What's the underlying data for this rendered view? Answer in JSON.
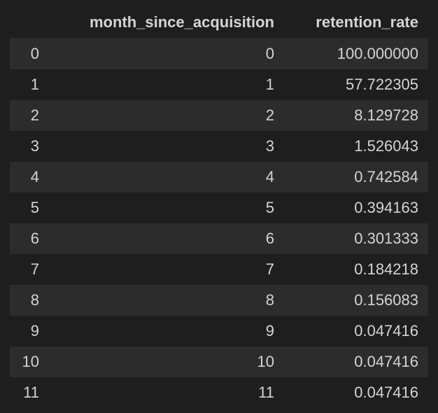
{
  "table": {
    "columns": [
      {
        "label": ""
      },
      {
        "label": "month_since_acquisition"
      },
      {
        "label": "retention_rate"
      }
    ],
    "rows": [
      {
        "index": "0",
        "month_since_acquisition": "0",
        "retention_rate": "100.000000"
      },
      {
        "index": "1",
        "month_since_acquisition": "1",
        "retention_rate": "57.722305"
      },
      {
        "index": "2",
        "month_since_acquisition": "2",
        "retention_rate": "8.129728"
      },
      {
        "index": "3",
        "month_since_acquisition": "3",
        "retention_rate": "1.526043"
      },
      {
        "index": "4",
        "month_since_acquisition": "4",
        "retention_rate": "0.742584"
      },
      {
        "index": "5",
        "month_since_acquisition": "5",
        "retention_rate": "0.394163"
      },
      {
        "index": "6",
        "month_since_acquisition": "6",
        "retention_rate": "0.301333"
      },
      {
        "index": "7",
        "month_since_acquisition": "7",
        "retention_rate": "0.184218"
      },
      {
        "index": "8",
        "month_since_acquisition": "8",
        "retention_rate": "0.156083"
      },
      {
        "index": "9",
        "month_since_acquisition": "9",
        "retention_rate": "0.047416"
      },
      {
        "index": "10",
        "month_since_acquisition": "10",
        "retention_rate": "0.047416"
      },
      {
        "index": "11",
        "month_since_acquisition": "11",
        "retention_rate": "0.047416"
      }
    ]
  },
  "colors": {
    "background": "#1e1e1e",
    "stripe": "#2c2c2c",
    "text": "#d4d4d4"
  }
}
